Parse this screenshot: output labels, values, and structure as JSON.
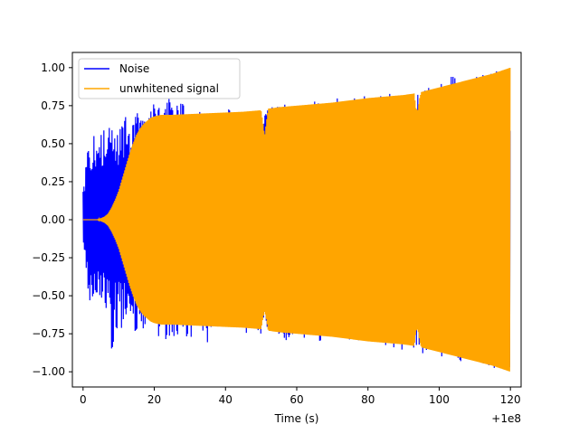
{
  "chart_data": {
    "type": "line",
    "title": "",
    "xlabel": "Time (s)",
    "ylabel": "",
    "x_offset_label": "+1e8",
    "xlim": [
      -3,
      123
    ],
    "ylim": [
      -1.1,
      1.1
    ],
    "x_ticks": [
      0,
      20,
      40,
      60,
      80,
      100,
      120
    ],
    "x_tick_labels": [
      "0",
      "20",
      "40",
      "60",
      "80",
      "100",
      "120"
    ],
    "y_ticks": [
      -1.0,
      -0.75,
      -0.5,
      -0.25,
      0.0,
      0.25,
      0.5,
      0.75,
      1.0
    ],
    "y_tick_labels": [
      "−1.00",
      "−0.75",
      "−0.50",
      "−0.25",
      "0.00",
      "0.25",
      "0.50",
      "0.75",
      "1.00"
    ],
    "grid": false,
    "legend_position": "top-left",
    "series": [
      {
        "name": "Noise",
        "color": "#0000ff",
        "x": [
          0,
          0.5,
          1,
          1.5,
          2,
          2.5,
          3,
          3.5,
          4,
          4.5,
          5,
          5.5,
          6,
          6.5,
          7,
          7.5,
          8,
          9,
          10,
          11,
          12,
          13,
          14,
          15,
          16,
          17,
          18,
          20,
          22,
          25,
          28,
          30,
          32,
          35,
          38,
          40,
          45,
          50,
          52,
          55,
          60,
          70,
          80,
          90,
          100,
          104,
          110,
          120
        ],
        "upper": [
          0.27,
          0.33,
          0.36,
          0.53,
          0.47,
          0.38,
          0.58,
          0.62,
          0.45,
          0.55,
          0.58,
          0.5,
          0.63,
          0.64,
          0.55,
          0.72,
          0.62,
          0.55,
          0.66,
          0.62,
          0.68,
          0.65,
          0.63,
          0.78,
          0.75,
          0.65,
          0.7,
          0.82,
          0.75,
          0.85,
          0.78,
          0.79,
          0.72,
          0.75,
          0.72,
          0.73,
          0.72,
          0.72,
          0.74,
          0.76,
          0.77,
          0.8,
          0.83,
          0.86,
          0.89,
          0.97,
          0.94,
          1.0
        ],
        "lower": [
          -0.27,
          -0.25,
          -0.43,
          -0.48,
          -0.6,
          -0.5,
          -0.58,
          -0.48,
          -0.55,
          -0.62,
          -0.5,
          -0.6,
          -0.67,
          -0.58,
          -0.55,
          -0.8,
          -0.95,
          -0.75,
          -0.7,
          -0.72,
          -0.68,
          -0.65,
          -0.7,
          -0.88,
          -0.8,
          -0.72,
          -0.7,
          -0.8,
          -0.78,
          -0.85,
          -0.8,
          -0.78,
          -0.75,
          -0.84,
          -0.78,
          -0.74,
          -0.75,
          -0.76,
          -0.78,
          -0.8,
          -0.8,
          -0.8,
          -0.83,
          -0.86,
          -0.9,
          -0.92,
          -0.95,
          -1.0
        ]
      },
      {
        "name": "unwhitened signal",
        "color": "#ffa500",
        "x": [
          0,
          2,
          4,
          6,
          7,
          8,
          9,
          10,
          11,
          12,
          13,
          14,
          15,
          16,
          17,
          18,
          19,
          20,
          22,
          25,
          30,
          35,
          40,
          45,
          50,
          50.5,
          51,
          51.5,
          52,
          55,
          60,
          70,
          80,
          90,
          93,
          93.5,
          94,
          94.5,
          95,
          100,
          105,
          110,
          115,
          120
        ],
        "upper": [
          0.0,
          0.0,
          0.0,
          0.02,
          0.04,
          0.08,
          0.13,
          0.19,
          0.27,
          0.35,
          0.43,
          0.5,
          0.56,
          0.6,
          0.63,
          0.65,
          0.67,
          0.68,
          0.69,
          0.69,
          0.695,
          0.7,
          0.705,
          0.71,
          0.72,
          0.64,
          0.55,
          0.65,
          0.73,
          0.74,
          0.75,
          0.77,
          0.8,
          0.82,
          0.83,
          0.73,
          0.72,
          0.8,
          0.84,
          0.87,
          0.9,
          0.93,
          0.96,
          1.0
        ],
        "lower": [
          0.0,
          0.0,
          0.0,
          -0.02,
          -0.04,
          -0.08,
          -0.13,
          -0.19,
          -0.27,
          -0.35,
          -0.43,
          -0.5,
          -0.56,
          -0.6,
          -0.63,
          -0.65,
          -0.67,
          -0.68,
          -0.69,
          -0.69,
          -0.695,
          -0.7,
          -0.705,
          -0.71,
          -0.72,
          -0.65,
          -0.6,
          -0.66,
          -0.73,
          -0.74,
          -0.75,
          -0.77,
          -0.8,
          -0.82,
          -0.83,
          -0.73,
          -0.72,
          -0.8,
          -0.84,
          -0.87,
          -0.9,
          -0.93,
          -0.96,
          -1.0
        ]
      }
    ]
  }
}
